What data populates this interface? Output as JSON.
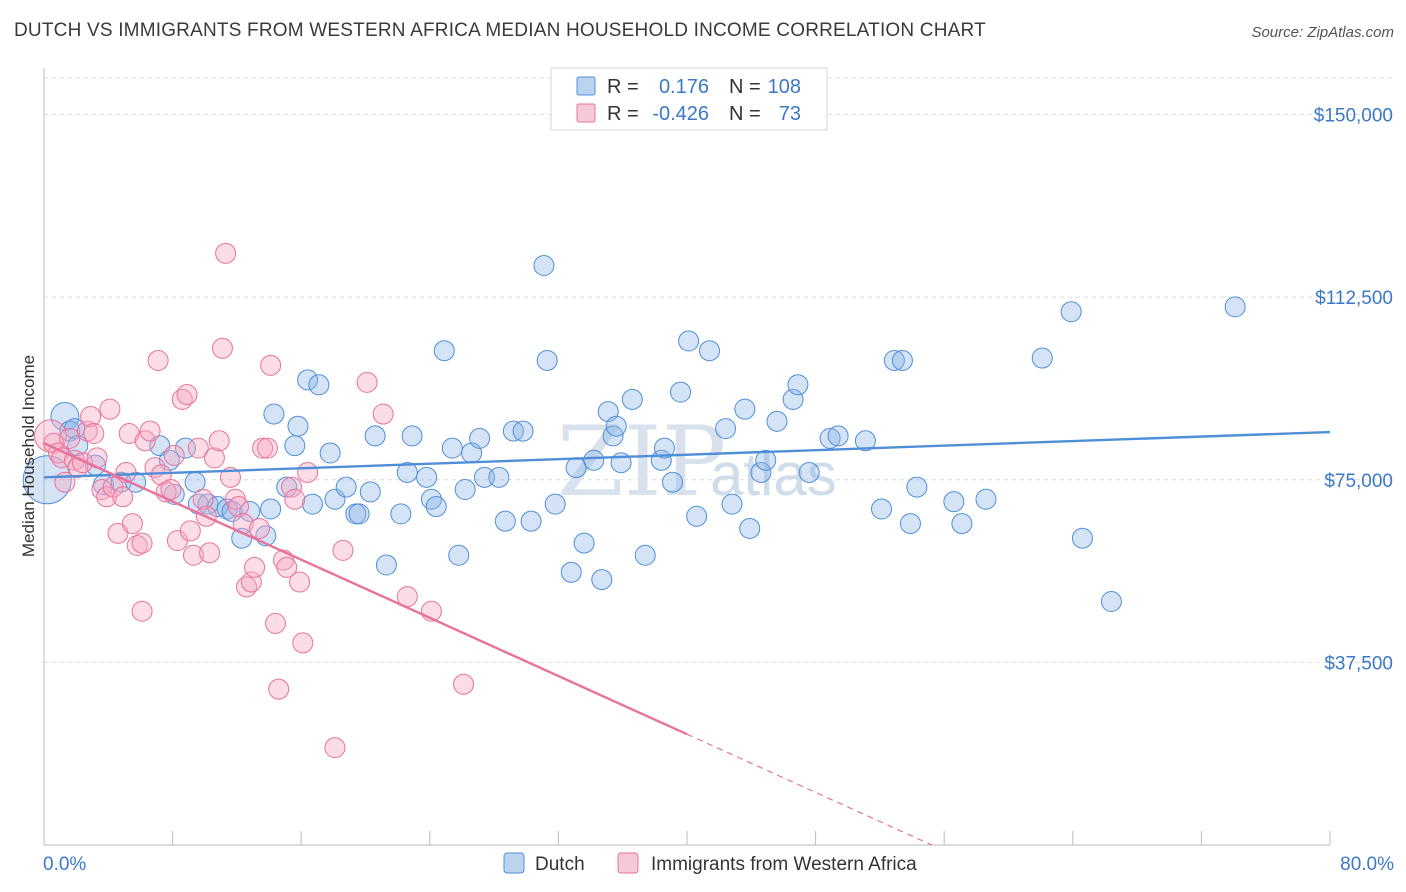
{
  "title": "DUTCH VS IMMIGRANTS FROM WESTERN AFRICA MEDIAN HOUSEHOLD INCOME CORRELATION CHART",
  "source": "Source: ZipAtlas.com",
  "watermark": {
    "zip": "ZIP",
    "atlas": "atlas"
  },
  "legend_box": {
    "rows": [
      {
        "r_label": "R =",
        "r_value": "0.176",
        "n_label": "N =",
        "n_value": "108",
        "color": "#4f8fd8"
      },
      {
        "r_label": "R =",
        "r_value": "-0.426",
        "n_label": "N =",
        "n_value": "73",
        "color": "#e8729a"
      }
    ]
  },
  "chart_data": {
    "type": "scatter",
    "title": "DUTCH VS IMMIGRANTS FROM WESTERN AFRICA MEDIAN HOUSEHOLD INCOME CORRELATION CHART",
    "xlabel": "",
    "ylabel": "Median Household Income",
    "xlim": [
      0,
      80
    ],
    "ylim": [
      0,
      157500
    ],
    "x_tick_labels": [
      "0.0%",
      "80.0%"
    ],
    "y_ticks": [
      37500,
      75000,
      112500,
      150000
    ],
    "y_tick_labels": [
      "$37,500",
      "$75,000",
      "$112,500",
      "$150,000"
    ],
    "grid": "horizontal dashed",
    "legend": "bottom-center",
    "series": [
      {
        "name": "Dutch",
        "color": "#4f8fd8",
        "trend": {
          "x0": 0,
          "y0": 75500,
          "x1": 80,
          "y1": 84800,
          "dashed_after": 80
        },
        "points": [
          [
            0.2,
            75000
          ],
          [
            1.3,
            88000
          ],
          [
            1.6,
            85000
          ],
          [
            1.9,
            85500
          ],
          [
            2.1,
            82000
          ],
          [
            3.2,
            78000
          ],
          [
            3.7,
            74000
          ],
          [
            4.8,
            74500
          ],
          [
            5.7,
            74500
          ],
          [
            7.2,
            82000
          ],
          [
            7.8,
            79000
          ],
          [
            8.1,
            72000
          ],
          [
            8.8,
            81500
          ],
          [
            9.4,
            74500
          ],
          [
            9.6,
            70000
          ],
          [
            10.2,
            70000
          ],
          [
            10.8,
            69500
          ],
          [
            11.4,
            69000
          ],
          [
            11.7,
            68500
          ],
          [
            12.3,
            63000
          ],
          [
            12.8,
            68500
          ],
          [
            13.8,
            63500
          ],
          [
            14.1,
            69000
          ],
          [
            14.3,
            88500
          ],
          [
            15.1,
            73500
          ],
          [
            15.6,
            82000
          ],
          [
            15.8,
            86000
          ],
          [
            16.4,
            95500
          ],
          [
            16.7,
            70000
          ],
          [
            17.1,
            94500
          ],
          [
            17.8,
            80500
          ],
          [
            18.1,
            71000
          ],
          [
            18.8,
            73500
          ],
          [
            19.4,
            68000
          ],
          [
            19.6,
            68000
          ],
          [
            20.3,
            72500
          ],
          [
            20.6,
            84000
          ],
          [
            21.3,
            57500
          ],
          [
            22.2,
            68000
          ],
          [
            22.6,
            76500
          ],
          [
            22.9,
            84000
          ],
          [
            23.8,
            75500
          ],
          [
            24.1,
            71000
          ],
          [
            24.4,
            69500
          ],
          [
            24.9,
            101500
          ],
          [
            25.4,
            81500
          ],
          [
            25.8,
            59500
          ],
          [
            26.2,
            73000
          ],
          [
            26.6,
            80500
          ],
          [
            27.1,
            83500
          ],
          [
            27.4,
            75500
          ],
          [
            28.3,
            75500
          ],
          [
            28.7,
            66500
          ],
          [
            29.2,
            85000
          ],
          [
            29.8,
            85000
          ],
          [
            30.3,
            66500
          ],
          [
            31.1,
            119000
          ],
          [
            31.3,
            99500
          ],
          [
            31.8,
            70000
          ],
          [
            32.8,
            56000
          ],
          [
            33.1,
            77500
          ],
          [
            33.6,
            62000
          ],
          [
            34.2,
            79000
          ],
          [
            34.7,
            54500
          ],
          [
            35.1,
            89000
          ],
          [
            35.4,
            84000
          ],
          [
            35.6,
            86000
          ],
          [
            35.9,
            78500
          ],
          [
            36.6,
            91500
          ],
          [
            37.4,
            59500
          ],
          [
            38.4,
            79000
          ],
          [
            38.6,
            81500
          ],
          [
            39.1,
            74500
          ],
          [
            39.6,
            93000
          ],
          [
            40.1,
            103500
          ],
          [
            40.6,
            67500
          ],
          [
            41.4,
            101500
          ],
          [
            42.4,
            85500
          ],
          [
            42.8,
            70000
          ],
          [
            43.6,
            89500
          ],
          [
            43.9,
            65000
          ],
          [
            44.6,
            76500
          ],
          [
            44.9,
            79000
          ],
          [
            45.6,
            87000
          ],
          [
            46.6,
            91500
          ],
          [
            46.9,
            94500
          ],
          [
            47.6,
            76500
          ],
          [
            48.9,
            83500
          ],
          [
            49.4,
            84000
          ],
          [
            51.1,
            83000
          ],
          [
            52.1,
            69000
          ],
          [
            52.9,
            99500
          ],
          [
            53.4,
            99500
          ],
          [
            53.9,
            66000
          ],
          [
            54.3,
            73500
          ],
          [
            56.6,
            70500
          ],
          [
            57.1,
            66000
          ],
          [
            58.6,
            71000
          ],
          [
            62.1,
            100000
          ],
          [
            63.9,
            109500
          ],
          [
            64.6,
            63000
          ],
          [
            66.4,
            50000
          ],
          [
            74.1,
            110500
          ]
        ]
      },
      {
        "name": "Immigrants from Western Africa",
        "color": "#e8729a",
        "trend": {
          "x0": 0,
          "y0": 82500,
          "x1": 80,
          "y1": -37000,
          "dashed_after": 40
        },
        "points": [
          [
            0.4,
            84000
          ],
          [
            0.6,
            82500
          ],
          [
            0.9,
            80500
          ],
          [
            1.1,
            79500
          ],
          [
            1.3,
            74500
          ],
          [
            1.6,
            83500
          ],
          [
            1.9,
            79000
          ],
          [
            2.1,
            77500
          ],
          [
            2.4,
            78500
          ],
          [
            2.7,
            85000
          ],
          [
            2.9,
            88000
          ],
          [
            3.1,
            84500
          ],
          [
            3.3,
            79500
          ],
          [
            3.6,
            73000
          ],
          [
            3.9,
            71500
          ],
          [
            4.1,
            89500
          ],
          [
            4.3,
            73500
          ],
          [
            4.6,
            64000
          ],
          [
            4.9,
            71500
          ],
          [
            5.1,
            76500
          ],
          [
            5.3,
            84500
          ],
          [
            5.5,
            66000
          ],
          [
            5.8,
            61500
          ],
          [
            6.1,
            62000
          ],
          [
            6.3,
            83000
          ],
          [
            6.6,
            85000
          ],
          [
            6.9,
            77500
          ],
          [
            7.1,
            99500
          ],
          [
            7.3,
            76000
          ],
          [
            7.6,
            72500
          ],
          [
            7.9,
            73000
          ],
          [
            8.1,
            80000
          ],
          [
            8.3,
            62500
          ],
          [
            8.6,
            91500
          ],
          [
            8.9,
            92500
          ],
          [
            9.1,
            64500
          ],
          [
            9.3,
            59500
          ],
          [
            9.6,
            81500
          ],
          [
            9.9,
            71000
          ],
          [
            10.1,
            67500
          ],
          [
            10.3,
            60000
          ],
          [
            10.6,
            79500
          ],
          [
            10.9,
            83000
          ],
          [
            11.1,
            102000
          ],
          [
            11.3,
            121500
          ],
          [
            11.6,
            75500
          ],
          [
            11.9,
            71000
          ],
          [
            12.1,
            69500
          ],
          [
            12.4,
            66000
          ],
          [
            12.6,
            53000
          ],
          [
            12.9,
            54000
          ],
          [
            13.1,
            57000
          ],
          [
            13.4,
            65000
          ],
          [
            13.6,
            81500
          ],
          [
            13.9,
            81500
          ],
          [
            14.1,
            98500
          ],
          [
            14.4,
            45500
          ],
          [
            14.6,
            32000
          ],
          [
            14.9,
            58500
          ],
          [
            15.1,
            57000
          ],
          [
            15.4,
            73500
          ],
          [
            15.6,
            71000
          ],
          [
            15.9,
            54000
          ],
          [
            16.1,
            41500
          ],
          [
            16.4,
            76500
          ],
          [
            18.1,
            20000
          ],
          [
            18.6,
            60500
          ],
          [
            20.1,
            95000
          ],
          [
            21.1,
            88500
          ],
          [
            22.6,
            51000
          ],
          [
            24.1,
            48000
          ],
          [
            26.1,
            33000
          ],
          [
            6.1,
            48000
          ]
        ]
      }
    ]
  }
}
